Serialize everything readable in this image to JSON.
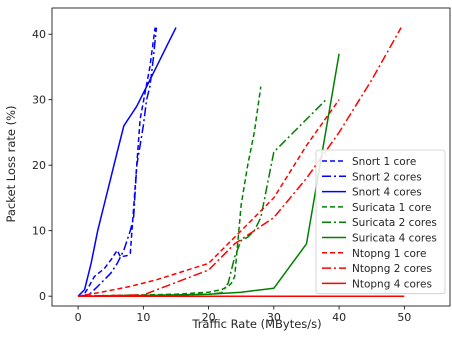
{
  "chart_data": {
    "type": "line",
    "xlabel": "Traffic Rate (MBytes/s)",
    "ylabel": "Packet Loss rate (%)",
    "xlim": [
      -4,
      57
    ],
    "ylim": [
      -1.5,
      44
    ],
    "xticks": [
      0,
      10,
      20,
      30,
      40,
      50
    ],
    "yticks": [
      0,
      10,
      20,
      30,
      40
    ],
    "grid": false,
    "legend_position": "lower-right",
    "series": [
      {
        "name": "Snort 1 core",
        "color": "#0000ff",
        "style": "dashed",
        "points": [
          [
            0,
            0
          ],
          [
            0.8,
            0.1
          ],
          [
            1.5,
            1.2
          ],
          [
            2.5,
            3
          ],
          [
            4,
            4.2
          ],
          [
            5,
            5.5
          ],
          [
            6,
            7
          ],
          [
            6.5,
            6
          ],
          [
            7.5,
            6.2
          ],
          [
            8,
            6.5
          ],
          [
            9.5,
            27
          ],
          [
            11,
            35
          ],
          [
            11.8,
            41
          ]
        ]
      },
      {
        "name": "Snort 2 cores",
        "color": "#0000ff",
        "style": "dashdot",
        "points": [
          [
            0,
            0
          ],
          [
            1,
            0.1
          ],
          [
            2,
            0.5
          ],
          [
            3,
            1.5
          ],
          [
            5,
            3.5
          ],
          [
            6,
            5
          ],
          [
            7,
            7
          ],
          [
            8,
            10
          ],
          [
            8.5,
            12
          ],
          [
            9,
            20
          ],
          [
            10,
            26
          ],
          [
            10.5,
            30
          ],
          [
            11,
            32
          ],
          [
            11.5,
            36
          ],
          [
            12,
            41
          ]
        ]
      },
      {
        "name": "Snort 4 cores",
        "color": "#0000ff",
        "style": "solid",
        "points": [
          [
            0,
            0
          ],
          [
            1,
            1
          ],
          [
            2,
            5
          ],
          [
            3,
            10
          ],
          [
            4,
            14
          ],
          [
            5,
            18
          ],
          [
            6,
            22
          ],
          [
            7,
            26
          ],
          [
            9,
            29
          ],
          [
            11,
            33
          ],
          [
            12,
            35
          ],
          [
            13,
            37
          ],
          [
            14,
            39
          ],
          [
            15,
            41
          ]
        ]
      },
      {
        "name": "Suricata 1 core",
        "color": "#008000",
        "style": "dashed",
        "points": [
          [
            0,
            0
          ],
          [
            5,
            0.1
          ],
          [
            10,
            0.2
          ],
          [
            15,
            0.3
          ],
          [
            20,
            0.6
          ],
          [
            22,
            1
          ],
          [
            23,
            1.5
          ],
          [
            23.5,
            2
          ],
          [
            24,
            3
          ],
          [
            25,
            14
          ],
          [
            26,
            20
          ],
          [
            27,
            25
          ],
          [
            28,
            32
          ]
        ]
      },
      {
        "name": "Suricata 2 cores",
        "color": "#008000",
        "style": "dashdot",
        "points": [
          [
            0,
            0
          ],
          [
            10,
            0.1
          ],
          [
            20,
            0.3
          ],
          [
            22,
            0.5
          ],
          [
            23,
            2
          ],
          [
            24,
            6
          ],
          [
            25,
            8.5
          ],
          [
            26,
            9
          ],
          [
            27,
            10
          ],
          [
            28,
            12
          ],
          [
            29,
            17
          ],
          [
            30,
            22
          ],
          [
            32,
            24
          ],
          [
            34,
            26
          ],
          [
            36,
            28
          ],
          [
            38,
            30
          ]
        ]
      },
      {
        "name": "Suricata 4 cores",
        "color": "#008000",
        "style": "solid",
        "points": [
          [
            0,
            0
          ],
          [
            10,
            0.1
          ],
          [
            20,
            0.3
          ],
          [
            25,
            0.6
          ],
          [
            30,
            1.2
          ],
          [
            35,
            8
          ],
          [
            40,
            37
          ]
        ]
      },
      {
        "name": "Ntopng 1 core",
        "color": "#ff0000",
        "style": "dashed",
        "points": [
          [
            0,
            0
          ],
          [
            3,
            0.5
          ],
          [
            8,
            1.5
          ],
          [
            12,
            2.5
          ],
          [
            20,
            5
          ],
          [
            22,
            7
          ],
          [
            25,
            10
          ],
          [
            28,
            13
          ],
          [
            30,
            15
          ],
          [
            35,
            23
          ],
          [
            40,
            30
          ]
        ]
      },
      {
        "name": "Ntopng 2 cores",
        "color": "#ff0000",
        "style": "dashdot",
        "points": [
          [
            0,
            0
          ],
          [
            10,
            0.2
          ],
          [
            20,
            4
          ],
          [
            24,
            8
          ],
          [
            27,
            10
          ],
          [
            30,
            12
          ],
          [
            35,
            18
          ],
          [
            40,
            25
          ],
          [
            45,
            33
          ],
          [
            49.5,
            41
          ]
        ]
      },
      {
        "name": "Ntopng 4 cores",
        "color": "#ff0000",
        "style": "solid",
        "points": [
          [
            0,
            0
          ],
          [
            10,
            0
          ],
          [
            20,
            0
          ],
          [
            30,
            0
          ],
          [
            40,
            0
          ],
          [
            50,
            0
          ]
        ]
      }
    ]
  }
}
